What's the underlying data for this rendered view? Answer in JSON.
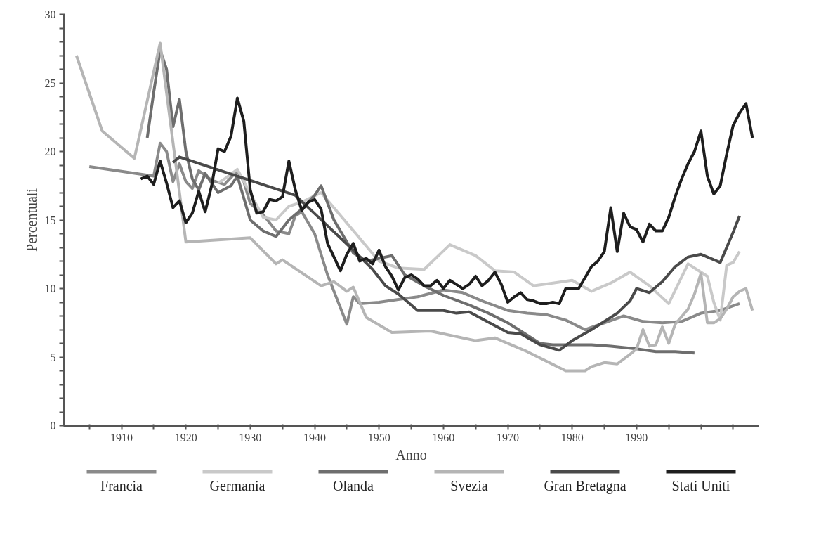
{
  "chart_data": {
    "type": "line",
    "xlabel": "Anno",
    "ylabel": "Percentuali",
    "xlim": [
      1901,
      2009
    ],
    "ylim": [
      0,
      30
    ],
    "xticks": [
      {
        "value": 1905,
        "label": null
      },
      1910,
      {
        "value": 1915,
        "label": null
      },
      1920,
      {
        "value": 1925,
        "label": null
      },
      1930,
      {
        "value": 1935,
        "label": null
      },
      1940,
      {
        "value": 1945,
        "label": null
      },
      1950,
      {
        "value": 1955,
        "label": null
      },
      1960,
      {
        "value": 1965,
        "label": null
      },
      1970,
      {
        "value": 1975,
        "label": null
      },
      1980,
      {
        "value": 1985,
        "label": null
      },
      1990,
      {
        "value": 1995,
        "label": null
      },
      {
        "value": 2000,
        "label": null
      },
      {
        "value": 2005,
        "label": null
      }
    ],
    "yticks": [
      0,
      {
        "value": 1,
        "label": null
      },
      {
        "value": 2,
        "label": null
      },
      {
        "value": 3,
        "label": null
      },
      {
        "value": 4,
        "label": null
      },
      5,
      {
        "value": 6,
        "label": null
      },
      {
        "value": 7,
        "label": null
      },
      {
        "value": 8,
        "label": null
      },
      {
        "value": 9,
        "label": null
      },
      10,
      {
        "value": 11,
        "label": null
      },
      {
        "value": 12,
        "label": null
      },
      {
        "value": 13,
        "label": null
      },
      {
        "value": 14,
        "label": null
      },
      15,
      {
        "value": 16,
        "label": null
      },
      {
        "value": 17,
        "label": null
      },
      {
        "value": 18,
        "label": null
      },
      {
        "value": 19,
        "label": null
      },
      20,
      {
        "value": 21,
        "label": null
      },
      {
        "value": 22,
        "label": null
      },
      {
        "value": 23,
        "label": null
      },
      {
        "value": 24,
        "label": null
      },
      25,
      {
        "value": 26,
        "label": null
      },
      {
        "value": 27,
        "label": null
      },
      {
        "value": 28,
        "label": null
      },
      {
        "value": 29,
        "label": null
      },
      30
    ],
    "grid": false,
    "legend": "bottom",
    "marker": "none",
    "line_style": "solid",
    "series": [
      {
        "name": "Francia",
        "color": "#8a8a8a",
        "x": [
          1905,
          1915,
          1916,
          1917,
          1918,
          1919,
          1920,
          1921,
          1922,
          1924,
          1926,
          1928,
          1929,
          1930,
          1932,
          1934,
          1936,
          1937,
          1938,
          1940,
          1942,
          1944,
          1945,
          1946,
          1947,
          1950,
          1953,
          1956,
          1960,
          1963,
          1966,
          1970,
          1973,
          1976,
          1979,
          1982,
          1985,
          1988,
          1991,
          1994,
          1997,
          2000,
          2003,
          2006
        ],
        "values": [
          18.9,
          18.2,
          20.6,
          20.0,
          17.8,
          19.1,
          17.8,
          17.3,
          18.6,
          17.9,
          17.6,
          18.6,
          17.8,
          16.2,
          15.4,
          14.2,
          14.0,
          15.3,
          15.6,
          14.0,
          11.0,
          8.6,
          7.4,
          9.4,
          8.9,
          9.0,
          9.2,
          9.4,
          9.9,
          9.7,
          9.1,
          8.4,
          8.2,
          8.1,
          7.7,
          7.0,
          7.5,
          8.0,
          7.6,
          7.5,
          7.6,
          8.2,
          8.4,
          8.9
        ]
      },
      {
        "name": "Germania",
        "color": "#c9c9c9",
        "x": [
          1925,
          1926,
          1928,
          1932,
          1934,
          1936,
          1938,
          1941,
          1950,
          1953,
          1957,
          1961,
          1965,
          1968,
          1971,
          1974,
          1977,
          1980,
          1983,
          1986,
          1989,
          1992,
          1995,
          1998,
          2001,
          2002,
          2003,
          2004,
          2005,
          2006
        ],
        "values": [
          17.7,
          18.0,
          18.7,
          15.2,
          15.0,
          16.0,
          16.3,
          17.0,
          12.0,
          11.5,
          11.4,
          13.2,
          12.4,
          11.3,
          11.2,
          10.2,
          10.4,
          10.6,
          9.8,
          10.4,
          11.2,
          10.2,
          8.9,
          11.8,
          10.9,
          9.0,
          7.7,
          11.7,
          11.9,
          12.7
        ]
      },
      {
        "name": "Olanda",
        "color": "#6e6e6e",
        "x": [
          1914,
          1915,
          1916,
          1917,
          1918,
          1919,
          1920,
          1921,
          1922,
          1923,
          1925,
          1927,
          1928,
          1930,
          1932,
          1934,
          1936,
          1938,
          1940,
          1941,
          1943,
          1946,
          1948,
          1950,
          1952,
          1954,
          1957,
          1960,
          1964,
          1967,
          1970,
          1973,
          1975,
          1977,
          1980,
          1983,
          1986,
          1990,
          1993,
          1996,
          1999
        ],
        "values": [
          21.0,
          24.3,
          27.4,
          26.0,
          21.8,
          23.8,
          20.0,
          18.0,
          17.2,
          18.4,
          17.0,
          17.5,
          18.2,
          15.0,
          14.2,
          13.8,
          15.0,
          15.8,
          16.8,
          17.5,
          15.0,
          12.6,
          12.0,
          12.2,
          12.4,
          11.0,
          10.2,
          9.5,
          8.8,
          8.2,
          7.5,
          6.6,
          6.0,
          5.9,
          5.9,
          5.9,
          5.8,
          5.6,
          5.4,
          5.4,
          5.3
        ]
      },
      {
        "name": "Svezia",
        "color": "#b5b5b5",
        "x": [
          1903,
          1907,
          1912,
          1916,
          1920,
          1930,
          1934,
          1935,
          1941,
          1943,
          1945,
          1946,
          1948,
          1952,
          1958,
          1965,
          1968,
          1973,
          1979,
          1982,
          1983,
          1985,
          1987,
          1989,
          1990,
          1991,
          1992,
          1993,
          1994,
          1995,
          1996,
          1998,
          1999,
          2000,
          2001,
          2002,
          2003,
          2004,
          2005,
          2006,
          2007,
          2008
        ],
        "values": [
          27.0,
          21.5,
          19.5,
          27.9,
          13.4,
          13.7,
          11.8,
          12.1,
          10.2,
          10.5,
          9.8,
          10.1,
          7.9,
          6.8,
          6.9,
          6.2,
          6.4,
          5.4,
          4.0,
          4.0,
          4.3,
          4.6,
          4.5,
          5.2,
          5.6,
          7.0,
          5.8,
          5.9,
          7.2,
          6.0,
          7.4,
          8.5,
          9.6,
          11.1,
          7.5,
          7.5,
          7.8,
          8.5,
          9.4,
          9.8,
          10.0,
          8.4
        ]
      },
      {
        "name": "Gran Bretagna",
        "color": "#4a4a4a",
        "x": [
          1918,
          1919,
          1937,
          1946,
          1949,
          1951,
          1953,
          1956,
          1960,
          1962,
          1964,
          1966,
          1970,
          1972,
          1975,
          1978,
          1980,
          1983,
          1987,
          1989,
          1990,
          1992,
          1994,
          1996,
          1998,
          2000,
          2003,
          2005,
          2006
        ],
        "values": [
          19.2,
          19.6,
          16.8,
          12.8,
          11.4,
          10.2,
          9.6,
          8.4,
          8.4,
          8.2,
          8.3,
          7.8,
          6.8,
          6.7,
          5.9,
          5.5,
          6.2,
          7.0,
          8.2,
          9.1,
          10.0,
          9.7,
          10.5,
          11.6,
          12.3,
          12.5,
          11.9,
          14.1,
          15.3
        ]
      },
      {
        "name": "Stati Uniti",
        "color": "#1e1e1e",
        "x": [
          1913,
          1914,
          1915,
          1916,
          1917,
          1918,
          1919,
          1920,
          1921,
          1922,
          1923,
          1924,
          1925,
          1926,
          1927,
          1928,
          1929,
          1930,
          1931,
          1932,
          1933,
          1934,
          1935,
          1936,
          1937,
          1938,
          1939,
          1940,
          1941,
          1942,
          1943,
          1944,
          1945,
          1946,
          1947,
          1948,
          1949,
          1950,
          1951,
          1952,
          1953,
          1954,
          1955,
          1956,
          1957,
          1958,
          1959,
          1960,
          1961,
          1962,
          1963,
          1964,
          1965,
          1966,
          1967,
          1968,
          1969,
          1970,
          1971,
          1972,
          1973,
          1974,
          1975,
          1976,
          1977,
          1978,
          1979,
          1980,
          1981,
          1982,
          1983,
          1984,
          1985,
          1986,
          1987,
          1988,
          1989,
          1990,
          1991,
          1992,
          1993,
          1994,
          1995,
          1996,
          1997,
          1998,
          1999,
          2000,
          2001,
          2002,
          2003,
          2004,
          2005,
          2006,
          2007,
          2008
        ],
        "values": [
          18.0,
          18.2,
          17.6,
          19.3,
          17.7,
          15.9,
          16.4,
          14.8,
          15.5,
          17.1,
          15.6,
          17.5,
          20.2,
          20.0,
          21.1,
          23.9,
          22.2,
          17.2,
          15.5,
          15.6,
          16.5,
          16.4,
          16.7,
          19.3,
          17.2,
          15.7,
          16.3,
          16.5,
          15.8,
          13.3,
          12.3,
          11.3,
          12.5,
          13.3,
          12.0,
          12.2,
          11.8,
          12.8,
          11.6,
          10.9,
          9.9,
          10.8,
          11.0,
          10.7,
          10.2,
          10.2,
          10.6,
          10.0,
          10.6,
          10.3,
          10.0,
          10.3,
          10.9,
          10.2,
          10.6,
          11.2,
          10.3,
          9.0,
          9.4,
          9.7,
          9.2,
          9.1,
          8.9,
          8.9,
          9.0,
          8.9,
          10.0,
          10.0,
          10.0,
          10.8,
          11.6,
          12.0,
          12.7,
          15.9,
          12.7,
          15.5,
          14.5,
          14.3,
          13.4,
          14.7,
          14.2,
          14.2,
          15.2,
          16.7,
          18.0,
          19.1,
          20.0,
          21.5,
          18.2,
          16.9,
          17.5,
          19.8,
          21.9,
          22.8,
          23.5,
          21.0
        ]
      }
    ]
  }
}
